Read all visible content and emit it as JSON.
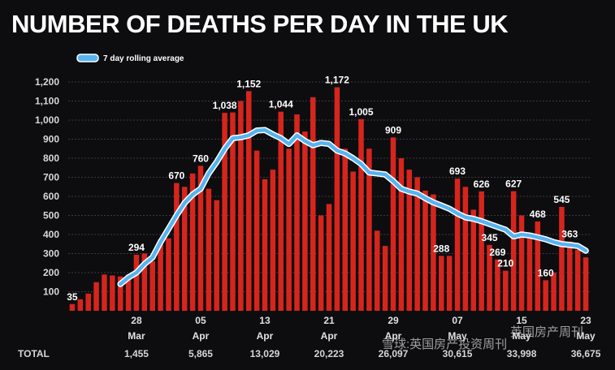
{
  "title": "NUMBER OF DEATHS PER DAY IN THE UK",
  "colors": {
    "background": "#0d0d10",
    "bar": "#d6251d",
    "line": "#56b4f0",
    "grid": "#3a3a40"
  },
  "chart_data": {
    "type": "bar",
    "title": "NUMBER OF DEATHS PER DAY IN THE UK",
    "xlabel": "",
    "ylabel": "",
    "ylim": [
      0,
      1200
    ],
    "yticks": [
      100,
      200,
      300,
      400,
      500,
      600,
      700,
      800,
      900,
      1000,
      1100,
      1200
    ],
    "ytick_labels": [
      "100",
      "200",
      "300",
      "400",
      "500",
      "600",
      "700",
      "800",
      "900",
      "1,000",
      "1,100",
      "1,200"
    ],
    "legend": {
      "label": "7 day rolling average",
      "placement": "top-left"
    },
    "x_ticks": [
      {
        "day": "28",
        "month": "Mar",
        "index": 8
      },
      {
        "day": "05",
        "month": "Apr",
        "index": 16
      },
      {
        "day": "13",
        "month": "Apr",
        "index": 24
      },
      {
        "day": "21",
        "month": "Apr",
        "index": 32
      },
      {
        "day": "29",
        "month": "Apr",
        "index": 40
      },
      {
        "day": "07",
        "month": "May",
        "index": 48
      },
      {
        "day": "15",
        "month": "May",
        "index": 56
      },
      {
        "day": "23",
        "month": "May",
        "index": 64
      }
    ],
    "series": [
      {
        "name": "Daily deaths",
        "type": "bar",
        "values": [
          35,
          60,
          90,
          150,
          190,
          185,
          180,
          190,
          294,
          300,
          260,
          375,
          380,
          670,
          650,
          720,
          760,
          640,
          580,
          1038,
          1040,
          1100,
          1152,
          840,
          690,
          740,
          1044,
          850,
          1030,
          940,
          1120,
          500,
          560,
          1172,
          850,
          730,
          1005,
          850,
          420,
          340,
          909,
          800,
          740,
          700,
          630,
          610,
          288,
          288,
          693,
          650,
          530,
          626,
          345,
          269,
          210,
          627,
          500,
          400,
          468,
          160,
          200,
          545,
          363,
          320,
          280
        ]
      },
      {
        "name": "7 day rolling average",
        "type": "line",
        "start_index": 6,
        "values": [
          140,
          175,
          200,
          245,
          280,
          360,
          430,
          500,
          565,
          610,
          640,
          720,
          780,
          850,
          905,
          910,
          920,
          945,
          948,
          925,
          905,
          875,
          920,
          890,
          868,
          880,
          875,
          840,
          825,
          800,
          770,
          725,
          720,
          715,
          680,
          640,
          625,
          615,
          590,
          568,
          552,
          535,
          510,
          490,
          482,
          470,
          455,
          440,
          425,
          390,
          400,
          395,
          385,
          375,
          360,
          350,
          345,
          340,
          315
        ]
      }
    ],
    "annotations": [
      {
        "index": 0,
        "value": 35,
        "label": "35"
      },
      {
        "index": 8,
        "value": 294,
        "label": "294"
      },
      {
        "index": 13,
        "value": 670,
        "label": "670"
      },
      {
        "index": 16,
        "value": 760,
        "label": "760"
      },
      {
        "index": 19,
        "value": 1038,
        "label": "1,038"
      },
      {
        "index": 22,
        "value": 1152,
        "label": "1,152"
      },
      {
        "index": 26,
        "value": 1044,
        "label": "1,044"
      },
      {
        "index": 33,
        "value": 1172,
        "label": "1,172"
      },
      {
        "index": 36,
        "value": 1005,
        "label": "1,005"
      },
      {
        "index": 40,
        "value": 909,
        "label": "909"
      },
      {
        "index": 46,
        "value": 288,
        "label": "288"
      },
      {
        "index": 48,
        "value": 693,
        "label": "693"
      },
      {
        "index": 51,
        "value": 626,
        "label": "626"
      },
      {
        "index": 52,
        "value": 345,
        "label": "345"
      },
      {
        "index": 53,
        "value": 269,
        "label": "269"
      },
      {
        "index": 54,
        "value": 210,
        "label": "210"
      },
      {
        "index": 55,
        "value": 627,
        "label": "627"
      },
      {
        "index": 58,
        "value": 468,
        "label": "468"
      },
      {
        "index": 59,
        "value": 160,
        "label": "160"
      },
      {
        "index": 61,
        "value": 545,
        "label": "545"
      },
      {
        "index": 62,
        "value": 363,
        "label": "363"
      }
    ],
    "totals": {
      "label": "TOTAL",
      "values": [
        {
          "index": 8,
          "text": "1,455"
        },
        {
          "index": 16,
          "text": "5,865"
        },
        {
          "index": 24,
          "text": "13,029"
        },
        {
          "index": 32,
          "text": "20,223"
        },
        {
          "index": 40,
          "text": "26,097"
        },
        {
          "index": 48,
          "text": "30,615"
        },
        {
          "index": 56,
          "text": "33,998"
        },
        {
          "index": 64,
          "text": "36,675"
        }
      ]
    }
  },
  "watermarks": [
    "雪球:英国房产投资周刊",
    "英国房产周刊"
  ]
}
